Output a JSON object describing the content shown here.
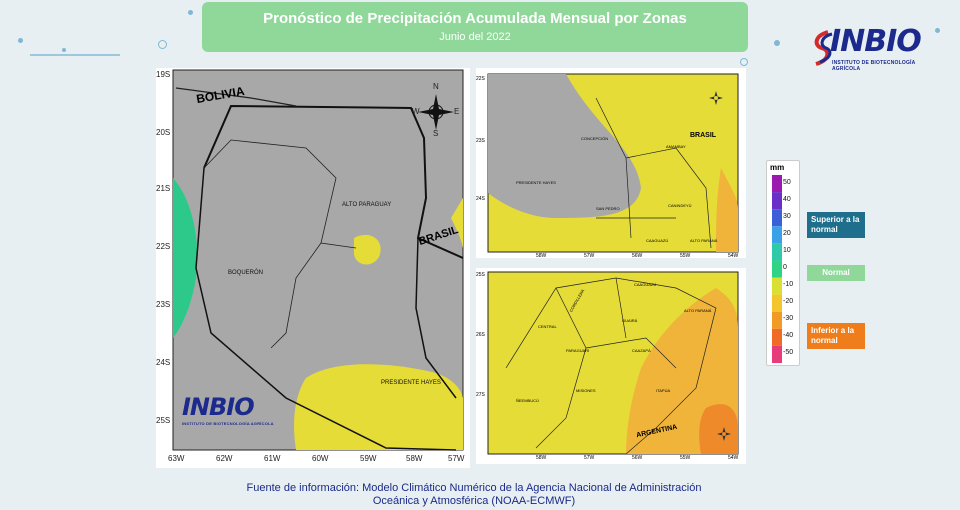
{
  "header": {
    "title": "Pronóstico de Precipitación Acumulada Mensual por Zonas",
    "subtitle": "Junio del 2022"
  },
  "logo": {
    "text": "INBIO",
    "tagline": "INSTITUTO DE BIOTECNOLOGÍA AGRÍCOLA"
  },
  "main_map": {
    "lat_labels": [
      "19S",
      "20S",
      "21S",
      "22S",
      "23S",
      "24S",
      "25S"
    ],
    "lon_labels": [
      "63W",
      "62W",
      "61W",
      "60W",
      "59W",
      "58W",
      "57W"
    ],
    "regions": [
      "BOLIVIA",
      "BRASIL",
      "ALTO PARAGUAY",
      "BOQUERÓN",
      "PRESIDENTE HAYES"
    ],
    "compass": [
      "N",
      "E",
      "S",
      "W"
    ]
  },
  "map_north": {
    "lat_labels": [
      "22S",
      "23S",
      "24S"
    ],
    "lon_labels": [
      "58W",
      "57W",
      "56W",
      "55W",
      "54W"
    ],
    "regions": [
      "CONCEPCIÓN",
      "PRESIDENTE HAYES",
      "SAN PEDRO",
      "AMAMBAY",
      "CANINDEYÚ",
      "BRASIL",
      "CAAGUAZÚ",
      "ALTO PARANÁ"
    ]
  },
  "map_south": {
    "lat_labels": [
      "25S",
      "26S",
      "27S"
    ],
    "lon_labels": [
      "58W",
      "57W",
      "56W",
      "55W",
      "54W"
    ],
    "regions": [
      "CORDILLERA",
      "CAAGUAZÚ",
      "CENTRAL",
      "PARAGUARÍ",
      "GUAIRÁ",
      "CAAZAPÁ",
      "ALTO PARANÁ",
      "ÑEEMBUCÚ",
      "MISIONES",
      "ITAPÚA",
      "ARGENTINA"
    ]
  },
  "legend": {
    "unit": "mm",
    "ticks": [
      "50",
      "40",
      "30",
      "20",
      "10",
      "0",
      "-10",
      "-20",
      "-30",
      "-40",
      "-50"
    ],
    "colors": [
      "#9b19b0",
      "#6a2fc9",
      "#3a5fd8",
      "#3aa0e8",
      "#2ec9a8",
      "#2fd487",
      "#d9df33",
      "#f2c62c",
      "#f29a26",
      "#ef6b26",
      "#e83c7a"
    ],
    "categories": [
      {
        "label": "Superior a la normal",
        "color": "#1f6e8c"
      },
      {
        "label": "Normal",
        "color": "#8fd89a"
      },
      {
        "label": "Inferior a la normal",
        "color": "#ef7d1c"
      }
    ]
  },
  "source": {
    "line1": "Fuente de información: Modelo Climático Numérico de la Agencia Nacional de Administración",
    "line2": "Oceánica y Atmosférica (NOAA-ECMWF)"
  }
}
